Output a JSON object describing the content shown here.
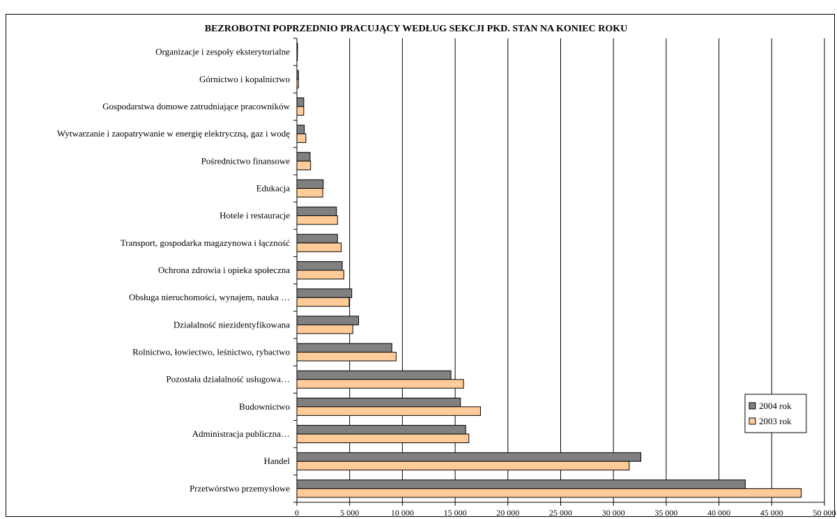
{
  "chart_data": {
    "type": "bar",
    "orientation": "horizontal",
    "title": "BEZROBOTNI POPRZEDNIO PRACUJĄCY WEDŁUG SEKCJI PKD. STAN NA KONIEC ROKU",
    "xlabel": "",
    "ylabel": "",
    "xlim": [
      0,
      50000
    ],
    "x_ticks": [
      0,
      5000,
      10000,
      15000,
      20000,
      25000,
      30000,
      35000,
      40000,
      45000,
      50000
    ],
    "x_tick_labels": [
      "0",
      "5 000",
      "10 000",
      "15 000",
      "20 000",
      "25 000",
      "30 000",
      "35 000",
      "40 000",
      "45 000",
      "50 000"
    ],
    "grid": "vertical",
    "legend_position": "right",
    "categories": [
      "Organizacje i zespoły eksterytorialne",
      "Górnictwo i kopalnictwo",
      "Gospodarstwa domowe zatrudniające pracowników",
      "Wytwarzanie i zaopatrywanie w energię elektryczną, gaz i wodę",
      "Pośrednictwo finansowe",
      "Edukacja",
      "Hotele i restauracje",
      "Transport, gospodarka magazynowa i łączność",
      "Ochrona zdrowia i opieka społeczna",
      "Obsługa nieruchomości, wynajem, nauka …",
      "Działalność niezidentyfikowana",
      "Rolnictwo, łowiectwo, leśnictwo, rybactwo",
      "Pozostała działalność usługowa…",
      "Budownictwo",
      "Administracja publiczna…",
      "Handel",
      "Przetwórstwo przemysłowe"
    ],
    "series": [
      {
        "name": "2004 rok",
        "color": "#808080",
        "values": [
          60,
          150,
          650,
          700,
          1250,
          2500,
          3750,
          3850,
          4300,
          5200,
          5850,
          9000,
          14600,
          15500,
          16000,
          32600,
          42500
        ]
      },
      {
        "name": "2003 rok",
        "color": "#FFCC99",
        "values": [
          50,
          150,
          650,
          850,
          1300,
          2450,
          3850,
          4200,
          4450,
          4950,
          5300,
          9400,
          15800,
          17400,
          16300,
          31500,
          47800
        ]
      }
    ]
  }
}
